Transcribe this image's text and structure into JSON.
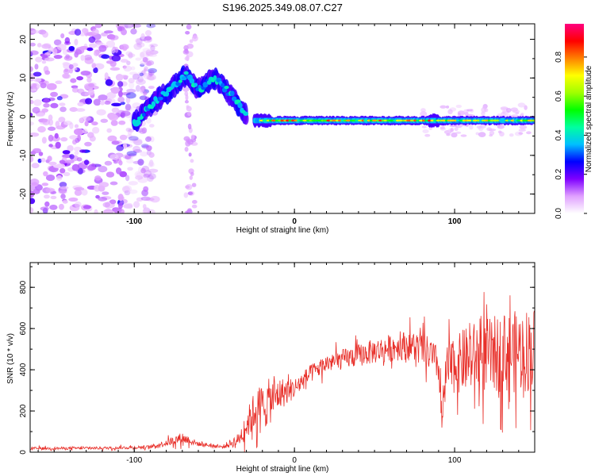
{
  "title": "S196.2025.349.08.07.C27",
  "chart_data": [
    {
      "type": "heatmap",
      "name": "spectrogram",
      "xlabel": "Height of straight line (km)",
      "ylabel": "Frequency (Hz)",
      "xlim": [
        -165,
        150
      ],
      "ylim": [
        -25,
        24
      ],
      "xticks": [
        -100,
        0,
        100
      ],
      "yticks": [
        -20,
        -10,
        0,
        10,
        20
      ],
      "colorbar": {
        "label": "Normalized spectral amplitude",
        "ticks": [
          0.0,
          0.2,
          0.4,
          0.6,
          0.8
        ],
        "range": [
          0,
          0.97
        ],
        "colors": [
          "#ffffff",
          "#e0a0ff",
          "#7f00ff",
          "#0000ff",
          "#00bfff",
          "#00ffa0",
          "#00ff00",
          "#a0ff00",
          "#ffff00",
          "#ff8000",
          "#ff0000",
          "#ff0080"
        ]
      },
      "features": [
        {
          "desc": "scattered noise region",
          "x_range": [
            -165,
            -95
          ],
          "freq_range": [
            -25,
            24
          ]
        },
        {
          "desc": "rising doppler arc",
          "points": [
            [
              -100,
              -2
            ],
            [
              -90,
              3
            ],
            [
              -80,
              6
            ],
            [
              -68,
              11
            ],
            [
              -60,
              7
            ],
            [
              -50,
              10
            ],
            [
              -45,
              8
            ],
            [
              -38,
              5
            ],
            [
              -30,
              0
            ]
          ]
        },
        {
          "desc": "flat signal band",
          "x_range": [
            -25,
            150
          ],
          "freq": -1
        }
      ]
    },
    {
      "type": "line",
      "name": "snr",
      "xlabel": "Height of straight line (km)",
      "ylabel": "SNR (10 * v/v)",
      "xlim": [
        -165,
        150
      ],
      "ylim": [
        0,
        920
      ],
      "xticks": [
        -100,
        0,
        100
      ],
      "yticks": [
        0,
        200,
        400,
        600,
        800
      ],
      "color": "#e8302a",
      "envelope": {
        "x": [
          -165,
          -120,
          -90,
          -80,
          -70,
          -60,
          -45,
          -35,
          -30,
          -25,
          -20,
          -15,
          -10,
          0,
          10,
          20,
          30,
          50,
          70,
          80,
          85,
          90,
          92,
          95,
          110,
          130,
          150
        ],
        "mean": [
          18,
          20,
          25,
          45,
          70,
          40,
          25,
          60,
          130,
          200,
          220,
          250,
          280,
          310,
          380,
          430,
          450,
          490,
          520,
          500,
          470,
          420,
          150,
          400,
          460,
          480,
          500
        ],
        "spread": [
          12,
          12,
          15,
          30,
          50,
          20,
          15,
          60,
          120,
          180,
          220,
          200,
          150,
          90,
          80,
          80,
          90,
          110,
          130,
          150,
          150,
          160,
          180,
          220,
          300,
          350,
          380
        ]
      }
    }
  ]
}
